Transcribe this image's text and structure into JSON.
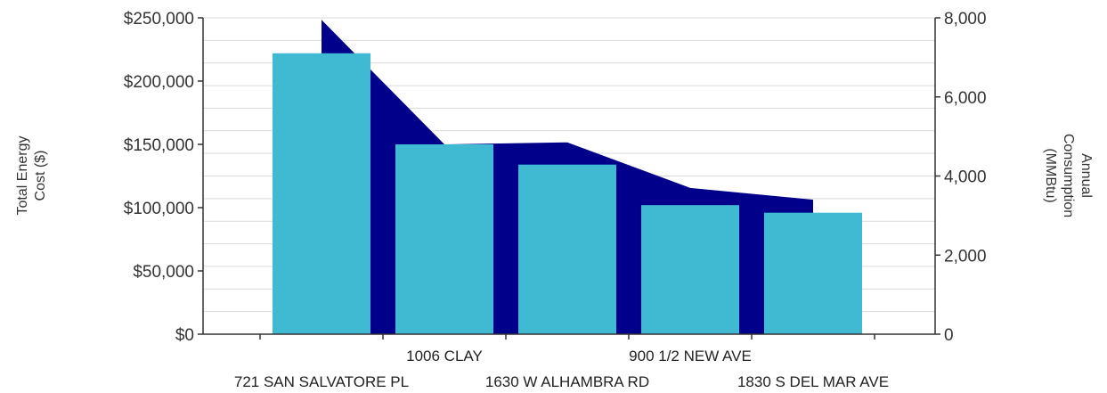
{
  "chart_data": {
    "type": "bar",
    "categories": [
      "721 SAN SALVATORE PL",
      "1006 CLAY",
      "1630 W ALHAMBRA RD",
      "900 1/2 NEW AVE",
      "1830 S DEL MAR AVE"
    ],
    "series": [
      {
        "name": "",
        "type": "area",
        "axis": "right",
        "values": [
          7950,
          4800,
          4850,
          3700,
          3400
        ]
      },
      {
        "name": "",
        "type": "bar",
        "axis": "left",
        "values": [
          222000,
          150000,
          134000,
          102000,
          96000
        ]
      }
    ],
    "y_left": {
      "label_lines": [
        "Total Energy",
        "Cost ($)"
      ],
      "ticks": [
        "$0",
        "$50,000",
        "$100,000",
        "$150,000",
        "$200,000",
        "$250,000"
      ],
      "range": [
        0,
        250000
      ]
    },
    "y_right": {
      "label_lines": [
        "Annual",
        "Consumption",
        "(MMBtu)"
      ],
      "ticks": [
        "0",
        "2,000",
        "4,000",
        "6,000",
        "8,000"
      ],
      "range": [
        0,
        8000
      ]
    },
    "grid": true,
    "legend": "none",
    "colors": {
      "bar": "#40b9d2",
      "area": "#00008b",
      "grid": "#d9d9d9",
      "axis": "#333333"
    }
  }
}
